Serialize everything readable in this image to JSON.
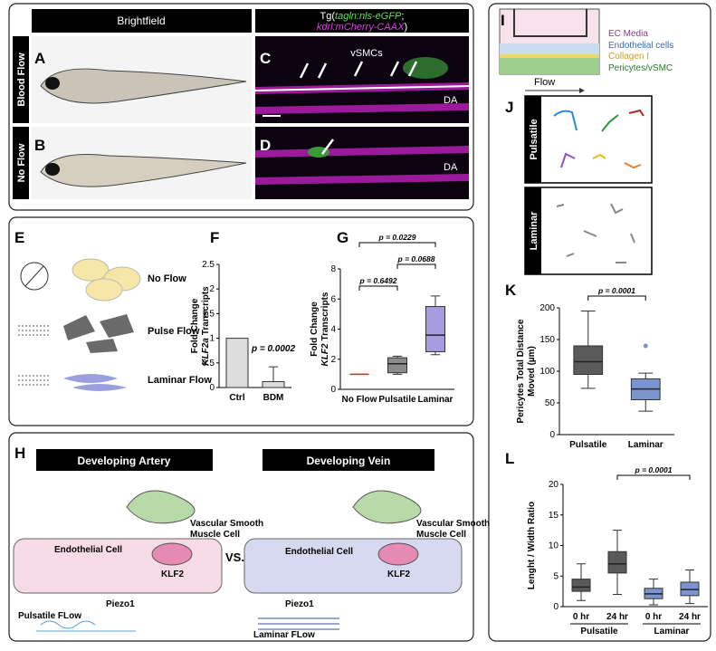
{
  "panel_labels": [
    "A",
    "B",
    "C",
    "D",
    "E",
    "F",
    "G",
    "H",
    "I",
    "J",
    "K",
    "L"
  ],
  "top": {
    "brightfield": "Brightfield",
    "tg_open": "Tg(",
    "gfp": "tagln:nls-eGFP",
    "semicolon": ";",
    "mcherry": "kdrl:mCherry-CAAX",
    "tg_close": ")",
    "rows": [
      "Blood Flow",
      "No Flow"
    ],
    "vsmcs": "vSMCs",
    "da": [
      "DA",
      "DA"
    ]
  },
  "e_labels": [
    "No Flow",
    "Pulse Flow",
    "Laminar Flow"
  ],
  "h": {
    "artery": "Developing Artery",
    "vein": "Developing Vein",
    "vs": "VS.",
    "vsmc": [
      "Vascular Smooth",
      "Muscle Cell"
    ],
    "endothelial": "Endothelial Cell",
    "klf2": "KLF2",
    "piezo": "Piezo1",
    "pulsatile": "Pulsatile FLow",
    "laminar": "Laminar FLow"
  },
  "i_labels": [
    "EC Media",
    "Endothelial cells",
    "Collagen I",
    "Pericytes/vSMC"
  ],
  "flow": "Flow",
  "j_labels": [
    "Pulsatile",
    "Laminar"
  ],
  "charts": {
    "F": {
      "type": "bar",
      "categories": [
        "Ctrl",
        "BDM"
      ],
      "values": [
        1,
        0.12
      ],
      "errors": [
        0,
        0.3
      ],
      "color": "#dcdcdc",
      "ylim": [
        0,
        2.5
      ],
      "yticks": [
        0,
        0.5,
        1,
        1.5,
        2,
        2.5
      ],
      "ylabel": [
        "Fold Change",
        "KLF2a",
        "Transcripts"
      ],
      "annotations": [
        "p = 0.0002"
      ]
    },
    "G": {
      "type": "box",
      "categories": [
        "No Flow",
        "Pulsatile",
        "Laminar"
      ],
      "boxes": [
        {
          "min": 1,
          "q1": 1,
          "median": 1,
          "q3": 1,
          "max": 1,
          "color": "#d62728"
        },
        {
          "min": 1,
          "q1": 1.1,
          "median": 1.7,
          "q3": 2.1,
          "max": 2.2,
          "color": "#8a8a8a"
        },
        {
          "min": 2.3,
          "q1": 2.5,
          "median": 3.6,
          "q3": 5.5,
          "max": 6.2,
          "color": "#a99be0"
        }
      ],
      "ylim": [
        0,
        8
      ],
      "yticks": [
        0,
        2,
        4,
        6,
        8
      ],
      "ylabel": [
        "Fold Change",
        "KLF2",
        "Transcripts"
      ],
      "annotations": [
        "p = 0.0229",
        "p = 0.0688",
        "p = 0.6492"
      ]
    },
    "K": {
      "type": "box",
      "categories": [
        "Pulsatile",
        "Laminar"
      ],
      "boxes": [
        {
          "min": 73,
          "q1": 95,
          "median": 115,
          "q3": 140,
          "max": 195,
          "color": "#5a5a5a"
        },
        {
          "min": 37,
          "q1": 55,
          "median": 72,
          "q3": 88,
          "max": 97,
          "outlier": 140,
          "color": "#7b94cf"
        }
      ],
      "ylim": [
        0,
        200
      ],
      "yticks": [
        0,
        50,
        100,
        150,
        200
      ],
      "ylabel": [
        "Pericytes Total Distance",
        "Moved (µm)"
      ],
      "annotations": [
        "p = 0.0001"
      ]
    },
    "L": {
      "type": "box",
      "categories": [
        "0 hr",
        "24 hr",
        "0 hr",
        "24 hr"
      ],
      "groups": [
        "Pulsatile",
        "Laminar"
      ],
      "boxes": [
        {
          "min": 1,
          "q1": 2.5,
          "median": 3.2,
          "q3": 4.5,
          "max": 7,
          "color": "#5a5a5a"
        },
        {
          "min": 2,
          "q1": 5.5,
          "median": 7,
          "q3": 9,
          "max": 12.5,
          "color": "#5a5a5a"
        },
        {
          "min": 0.3,
          "q1": 1.3,
          "median": 2.1,
          "q3": 3,
          "max": 4.5,
          "color": "#7b94cf"
        },
        {
          "min": 0.5,
          "q1": 1.8,
          "median": 2.8,
          "q3": 4,
          "max": 6,
          "color": "#7b94cf"
        }
      ],
      "ylim": [
        0,
        20
      ],
      "yticks": [
        0,
        5,
        10,
        15,
        20
      ],
      "ylabel": [
        "Lenght / Width Ratio"
      ],
      "annotations": [
        "p = 0.0001"
      ]
    }
  }
}
